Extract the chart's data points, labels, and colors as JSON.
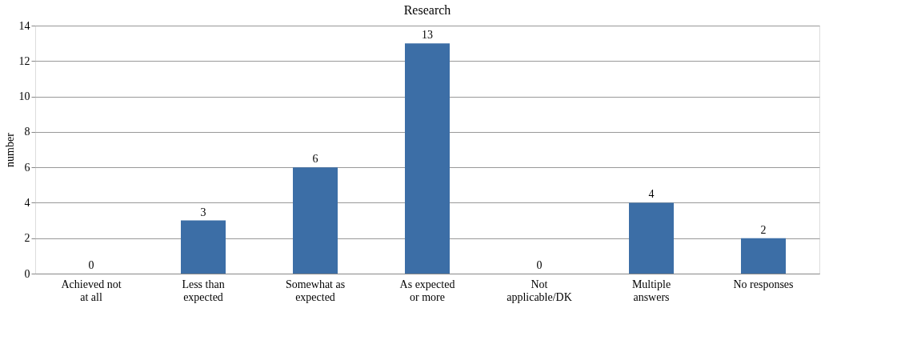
{
  "chart_data": {
    "type": "bar",
    "title": "Research",
    "ylabel": "number",
    "categories": [
      "Achieved not at all",
      "Less than expected",
      "Somewhat as expected",
      "As expected or more",
      "Not applicable/DK",
      "Multiple answers",
      "No responses"
    ],
    "values": [
      0,
      3,
      6,
      13,
      0,
      4,
      2
    ],
    "color": "#3c6ea6",
    "ylim": [
      0,
      14
    ],
    "yticks": [
      0,
      2,
      4,
      6,
      8,
      10,
      12,
      14
    ],
    "grid": "y",
    "data_labels": true
  }
}
